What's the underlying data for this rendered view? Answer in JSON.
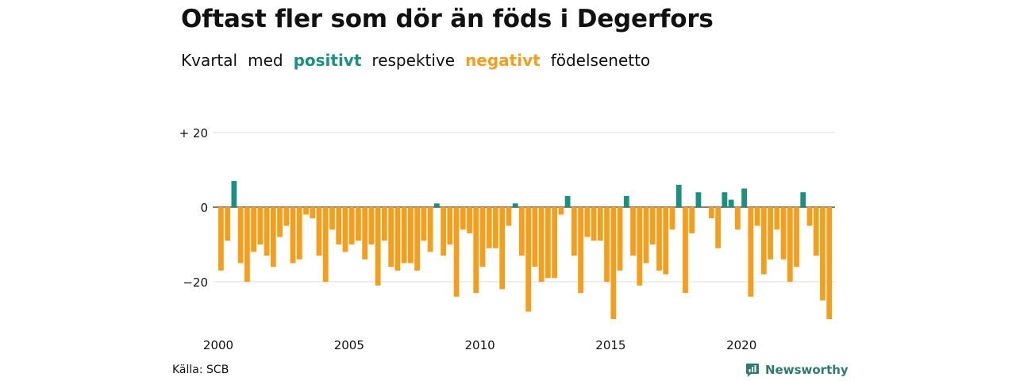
{
  "header": {
    "title": "Oftast fler som dör än föds i Degerfors",
    "subtitle": {
      "w1": "Kvartal",
      "w2": "med",
      "w3": "positivt",
      "w4": "respektive",
      "w5": "negativt",
      "w6": "födelsenetto"
    }
  },
  "footer": {
    "source": "Källa: SCB",
    "brand": "Newsworthy",
    "brand_icon": "newsworthy-logo-icon"
  },
  "colors": {
    "positive": "#1a9180",
    "negative": "#f59e1b",
    "grid": "#dddddd",
    "baseline": "#333333",
    "brand": "#2e7a70"
  },
  "chart_data": {
    "type": "bar",
    "x_start": "2000 Q1",
    "period": "quarter",
    "x_ticks": [
      "2000",
      "2005",
      "2010",
      "2015",
      "2020"
    ],
    "y_ticks": [
      {
        "value": 20,
        "label": "+ 20"
      },
      {
        "value": 0,
        "label": "0"
      },
      {
        "value": -20,
        "label": "−20"
      }
    ],
    "ylim": [
      -30,
      20
    ],
    "grid": true,
    "values": [
      -17,
      -9,
      7,
      -15,
      -20,
      -12,
      -10,
      -13,
      -16,
      -8,
      -5,
      -15,
      -14,
      -2,
      -3,
      -13,
      -20,
      -6,
      -10,
      -12,
      -10,
      -9,
      -14,
      -10,
      -21,
      -9,
      -16,
      -17,
      -15,
      -15,
      -17,
      -9,
      -12,
      1,
      -13,
      -10,
      -24,
      -6,
      -7,
      -23,
      -16,
      -11,
      -11,
      -22,
      -5,
      1,
      -13,
      -28,
      -16,
      -20,
      -19,
      -19,
      -2,
      3,
      -13,
      -23,
      -8,
      -9,
      -9,
      -20,
      -30,
      -17,
      3,
      -13,
      -21,
      -15,
      -10,
      -17,
      -18,
      -6,
      6,
      -23,
      -7,
      4,
      0,
      -3,
      -11,
      4,
      2,
      -6,
      5,
      -24,
      -5,
      -18,
      -14,
      -6,
      -14,
      -20,
      -16,
      4,
      -5,
      -13,
      -25,
      -30
    ]
  }
}
